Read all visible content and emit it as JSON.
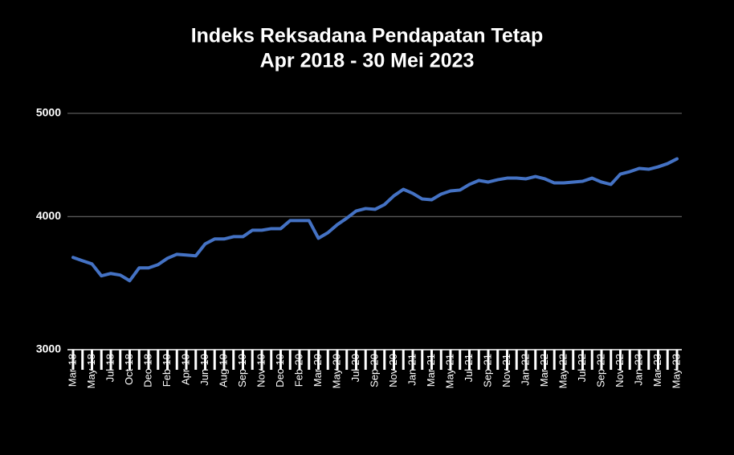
{
  "chart_data": {
    "type": "line",
    "title": "Indeks Reksadana Pendapatan Tetap",
    "subtitle": "Apr 2018 - 30 Mei 2023",
    "categories": [
      "Mar-18",
      null,
      "May-18",
      null,
      "Jul-18",
      null,
      "Oct-18",
      null,
      "Dec-18",
      null,
      "Feb-19",
      null,
      "Apr-19",
      null,
      "Jun-19",
      null,
      "Aug-19",
      null,
      "Sep-19",
      null,
      "Nov-19",
      null,
      "Dec-19",
      null,
      "Feb-20",
      null,
      "Mar-20",
      null,
      "May-20",
      null,
      "Jul-20",
      null,
      "Sep-20",
      null,
      "Nov-20",
      null,
      "Jan-21",
      null,
      "Mar-21",
      null,
      "May-21",
      null,
      "Jul-21",
      null,
      "Sep-21",
      null,
      "Nov-21",
      null,
      "Jan-22",
      null,
      "Mar-22",
      null,
      "May-22",
      null,
      "Jul-22",
      null,
      "Sep-22",
      null,
      "Nov-22",
      null,
      "Jan-23",
      null,
      "Mar-23",
      null,
      "May-23"
    ],
    "series": [
      {
        "color": "#4472c4",
        "values": [
          3662,
          3636,
          3611,
          3519,
          3537,
          3525,
          3482,
          3580,
          3580,
          3605,
          3655,
          3687,
          3681,
          3675,
          3771,
          3811,
          3811,
          3830,
          3830,
          3884,
          3884,
          3897,
          3897,
          3966,
          3966,
          3966,
          3817,
          3863,
          3931,
          3986,
          4049,
          4070,
          4063,
          4105,
          4184,
          4243,
          4206,
          4155,
          4148,
          4199,
          4228,
          4236,
          4288,
          4325,
          4310,
          4332,
          4347,
          4347,
          4340,
          4362,
          4340,
          4302,
          4302,
          4310,
          4317,
          4347,
          4310,
          4288,
          4385,
          4408,
          4439,
          4431,
          4454,
          4485,
          4532
        ]
      }
    ],
    "yscale": "log",
    "ylim": [
      3000,
      5000
    ],
    "yticks": [
      3000,
      4000,
      5000
    ],
    "grid": true
  }
}
